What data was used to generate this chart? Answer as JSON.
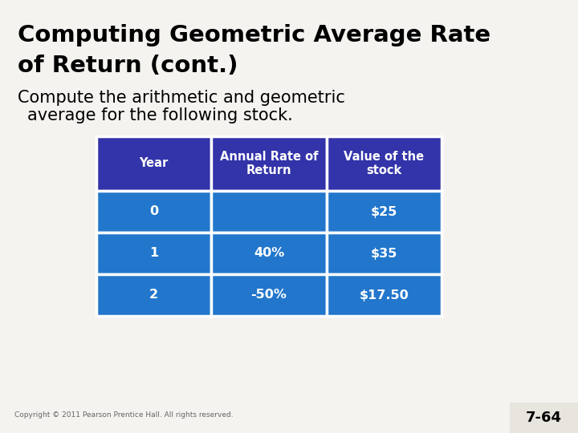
{
  "title_line1": "Computing Geometric Average Rate",
  "title_line2": "of Return (cont.)",
  "subtitle_line1": "Compute the arithmetic and geometric",
  "subtitle_line2": "  average for the following stock.",
  "bg_color": "#f5f3f0",
  "title_color": "#000000",
  "subtitle_color": "#000000",
  "header_bg": "#3333aa",
  "row_bg": "#2277cc",
  "header_text_color": "#ffffff",
  "row_text_color": "#ffffff",
  "col_headers": [
    "Year",
    "Annual Rate of\nReturn",
    "Value of the\nstock"
  ],
  "rows": [
    [
      "0",
      "",
      "$25"
    ],
    [
      "1",
      "40%",
      "$35"
    ],
    [
      "2",
      "-50%",
      "$17.50"
    ]
  ],
  "copyright": "Copyright © 2011 Pearson Prentice Hall. All rights reserved.",
  "page_num": "7-64",
  "page_num_bg": "#e8e4de",
  "border_color": "#ffffff"
}
